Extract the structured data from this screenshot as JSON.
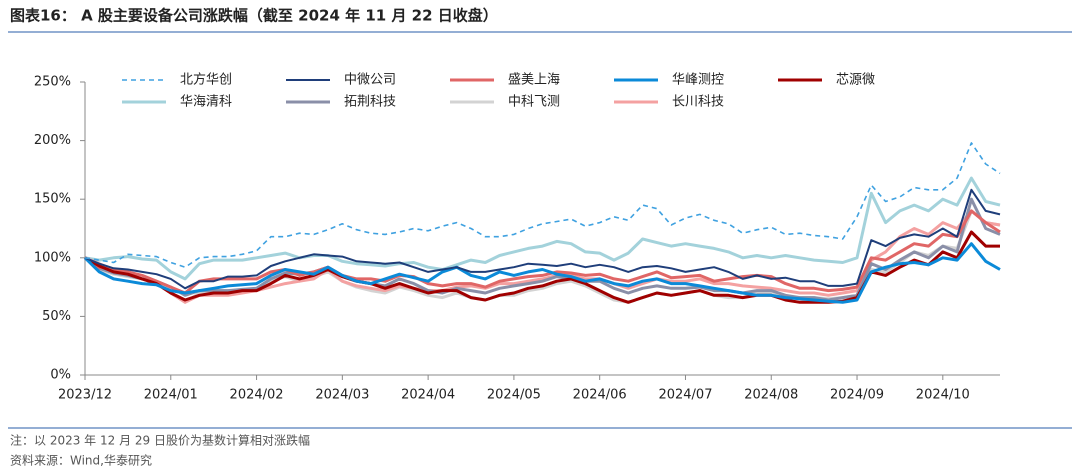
{
  "chart_data": {
    "type": "line",
    "title": "图表16： A 股主要设备公司涨跌幅（截至 2024 年 11 月 22 日收盘）",
    "note": "注：以 2023 年 12 月 29 日股价为基数计算相对涨跌幅",
    "source": "资料来源：Wind,华泰研究",
    "categories": [
      "2023/12",
      null,
      null,
      null,
      null,
      null,
      "2024/01",
      null,
      null,
      null,
      null,
      null,
      "2024/02",
      null,
      null,
      null,
      null,
      null,
      "2024/03",
      null,
      null,
      null,
      null,
      null,
      "2024/04",
      null,
      null,
      null,
      null,
      null,
      "2024/05",
      null,
      null,
      null,
      null,
      null,
      "2024/06",
      null,
      null,
      null,
      null,
      null,
      "2024/07",
      null,
      null,
      null,
      null,
      null,
      "2024/08",
      null,
      null,
      null,
      null,
      null,
      "2024/09",
      null,
      null,
      null,
      null,
      null,
      "2024/10",
      null,
      null,
      null,
      null
    ],
    "ylim": [
      0,
      250
    ],
    "yticks": [
      {
        "value": 0,
        "label": "0%"
      },
      {
        "value": 50,
        "label": "50%"
      },
      {
        "value": 100,
        "label": "100%"
      },
      {
        "value": 150,
        "label": "150%"
      },
      {
        "value": 200,
        "label": "200%"
      },
      {
        "value": 250,
        "label": "250%"
      }
    ],
    "grid": false,
    "series": [
      {
        "name": "北方华创",
        "color": "#3FA1E0",
        "line_style": "dashed",
        "values": [
          100,
          98,
          96,
          103,
          102,
          101,
          96,
          92,
          100,
          101,
          101,
          103,
          106,
          118,
          118,
          121,
          120,
          124,
          129,
          124,
          121,
          120,
          122,
          125,
          123,
          127,
          130,
          125,
          118,
          118,
          120,
          125,
          129,
          131,
          133,
          127,
          130,
          135,
          132,
          145,
          142,
          128,
          134,
          137,
          132,
          129,
          121,
          124,
          126,
          120,
          121,
          119,
          118,
          116,
          135,
          162,
          148,
          152,
          160,
          158,
          158,
          168,
          198,
          180,
          172
        ]
      },
      {
        "name": "中微公司",
        "color": "#1F3E7A",
        "values": [
          100,
          95,
          91,
          90,
          88,
          86,
          82,
          74,
          80,
          80,
          84,
          84,
          85,
          93,
          97,
          100,
          103,
          102,
          101,
          97,
          96,
          95,
          96,
          92,
          88,
          90,
          92,
          88,
          88,
          90,
          92,
          95,
          94,
          93,
          95,
          92,
          94,
          92,
          88,
          92,
          93,
          91,
          88,
          90,
          92,
          88,
          82,
          85,
          82,
          83,
          80,
          80,
          76,
          76,
          78,
          115,
          110,
          117,
          120,
          118,
          125,
          118,
          158,
          140,
          137
        ]
      },
      {
        "name": "盛美上海",
        "color": "#E06666",
        "values": [
          100,
          92,
          90,
          88,
          85,
          80,
          75,
          70,
          80,
          82,
          82,
          82,
          82,
          88,
          90,
          85,
          88,
          92,
          85,
          82,
          82,
          80,
          85,
          84,
          78,
          76,
          78,
          78,
          75,
          80,
          82,
          84,
          85,
          88,
          87,
          85,
          86,
          82,
          80,
          84,
          88,
          83,
          84,
          85,
          80,
          82,
          84,
          85,
          84,
          78,
          74,
          74,
          72,
          73,
          75,
          100,
          98,
          105,
          112,
          110,
          120,
          118,
          140,
          130,
          122
        ]
      },
      {
        "name": "华峰测控",
        "color": "#0B8AD8",
        "values": [
          100,
          88,
          82,
          80,
          78,
          77,
          72,
          70,
          72,
          74,
          76,
          77,
          78,
          85,
          90,
          88,
          86,
          92,
          85,
          80,
          78,
          82,
          86,
          83,
          80,
          88,
          92,
          85,
          82,
          88,
          85,
          88,
          90,
          86,
          84,
          80,
          82,
          78,
          76,
          80,
          82,
          78,
          78,
          76,
          74,
          72,
          70,
          68,
          68,
          66,
          65,
          64,
          63,
          62,
          64,
          88,
          92,
          95,
          96,
          94,
          100,
          98,
          112,
          97,
          90
        ]
      },
      {
        "name": "芯源微",
        "color": "#A00000",
        "values": [
          100,
          93,
          88,
          86,
          82,
          78,
          70,
          64,
          68,
          70,
          70,
          72,
          72,
          78,
          85,
          82,
          85,
          90,
          84,
          80,
          78,
          74,
          78,
          74,
          70,
          72,
          72,
          66,
          64,
          68,
          70,
          74,
          76,
          80,
          82,
          78,
          72,
          66,
          62,
          66,
          70,
          68,
          70,
          72,
          68,
          68,
          66,
          68,
          68,
          64,
          62,
          62,
          62,
          63,
          66,
          88,
          85,
          92,
          98,
          94,
          105,
          100,
          122,
          110,
          110
        ]
      },
      {
        "name": "华海清科",
        "color": "#A3D2DB",
        "values": [
          100,
          98,
          100,
          101,
          99,
          98,
          88,
          82,
          95,
          98,
          98,
          98,
          100,
          102,
          104,
          100,
          102,
          102,
          97,
          95,
          94,
          93,
          95,
          96,
          92,
          90,
          94,
          98,
          96,
          102,
          105,
          108,
          110,
          114,
          112,
          105,
          104,
          98,
          104,
          116,
          113,
          110,
          112,
          110,
          108,
          105,
          100,
          102,
          100,
          102,
          100,
          98,
          97,
          96,
          100,
          155,
          130,
          140,
          145,
          140,
          150,
          145,
          168,
          148,
          145
        ]
      },
      {
        "name": "拓荆科技",
        "color": "#8A8FA8",
        "values": [
          100,
          91,
          87,
          85,
          82,
          80,
          75,
          68,
          72,
          72,
          72,
          73,
          74,
          82,
          87,
          86,
          88,
          92,
          84,
          80,
          78,
          76,
          82,
          78,
          72,
          70,
          74,
          72,
          70,
          74,
          76,
          78,
          80,
          84,
          82,
          80,
          80,
          74,
          70,
          74,
          76,
          74,
          74,
          75,
          72,
          72,
          70,
          72,
          72,
          68,
          66,
          66,
          64,
          66,
          68,
          95,
          90,
          98,
          105,
          100,
          110,
          105,
          150,
          125,
          120
        ]
      },
      {
        "name": "中科飞测",
        "color": "#D3D3D3",
        "values": [
          100,
          90,
          86,
          84,
          82,
          78,
          70,
          62,
          70,
          72,
          72,
          72,
          72,
          80,
          84,
          80,
          84,
          88,
          80,
          75,
          72,
          70,
          75,
          72,
          68,
          66,
          70,
          66,
          64,
          68,
          68,
          72,
          74,
          78,
          80,
          76,
          70,
          64,
          62,
          66,
          70,
          68,
          70,
          72,
          68,
          66,
          66,
          70,
          70,
          66,
          66,
          66,
          65,
          66,
          68,
          90,
          88,
          96,
          105,
          102,
          110,
          108,
          140,
          130,
          128
        ]
      },
      {
        "name": "长川科技",
        "color": "#F4A1A1",
        "values": [
          100,
          95,
          90,
          86,
          82,
          78,
          70,
          62,
          68,
          68,
          68,
          70,
          72,
          75,
          78,
          80,
          82,
          90,
          80,
          76,
          74,
          72,
          76,
          74,
          72,
          72,
          75,
          76,
          74,
          78,
          78,
          80,
          82,
          85,
          85,
          82,
          82,
          78,
          74,
          78,
          82,
          80,
          80,
          82,
          78,
          78,
          76,
          75,
          74,
          72,
          70,
          70,
          68,
          70,
          72,
          98,
          105,
          118,
          125,
          120,
          130,
          125,
          140,
          130,
          128
        ]
      }
    ]
  }
}
